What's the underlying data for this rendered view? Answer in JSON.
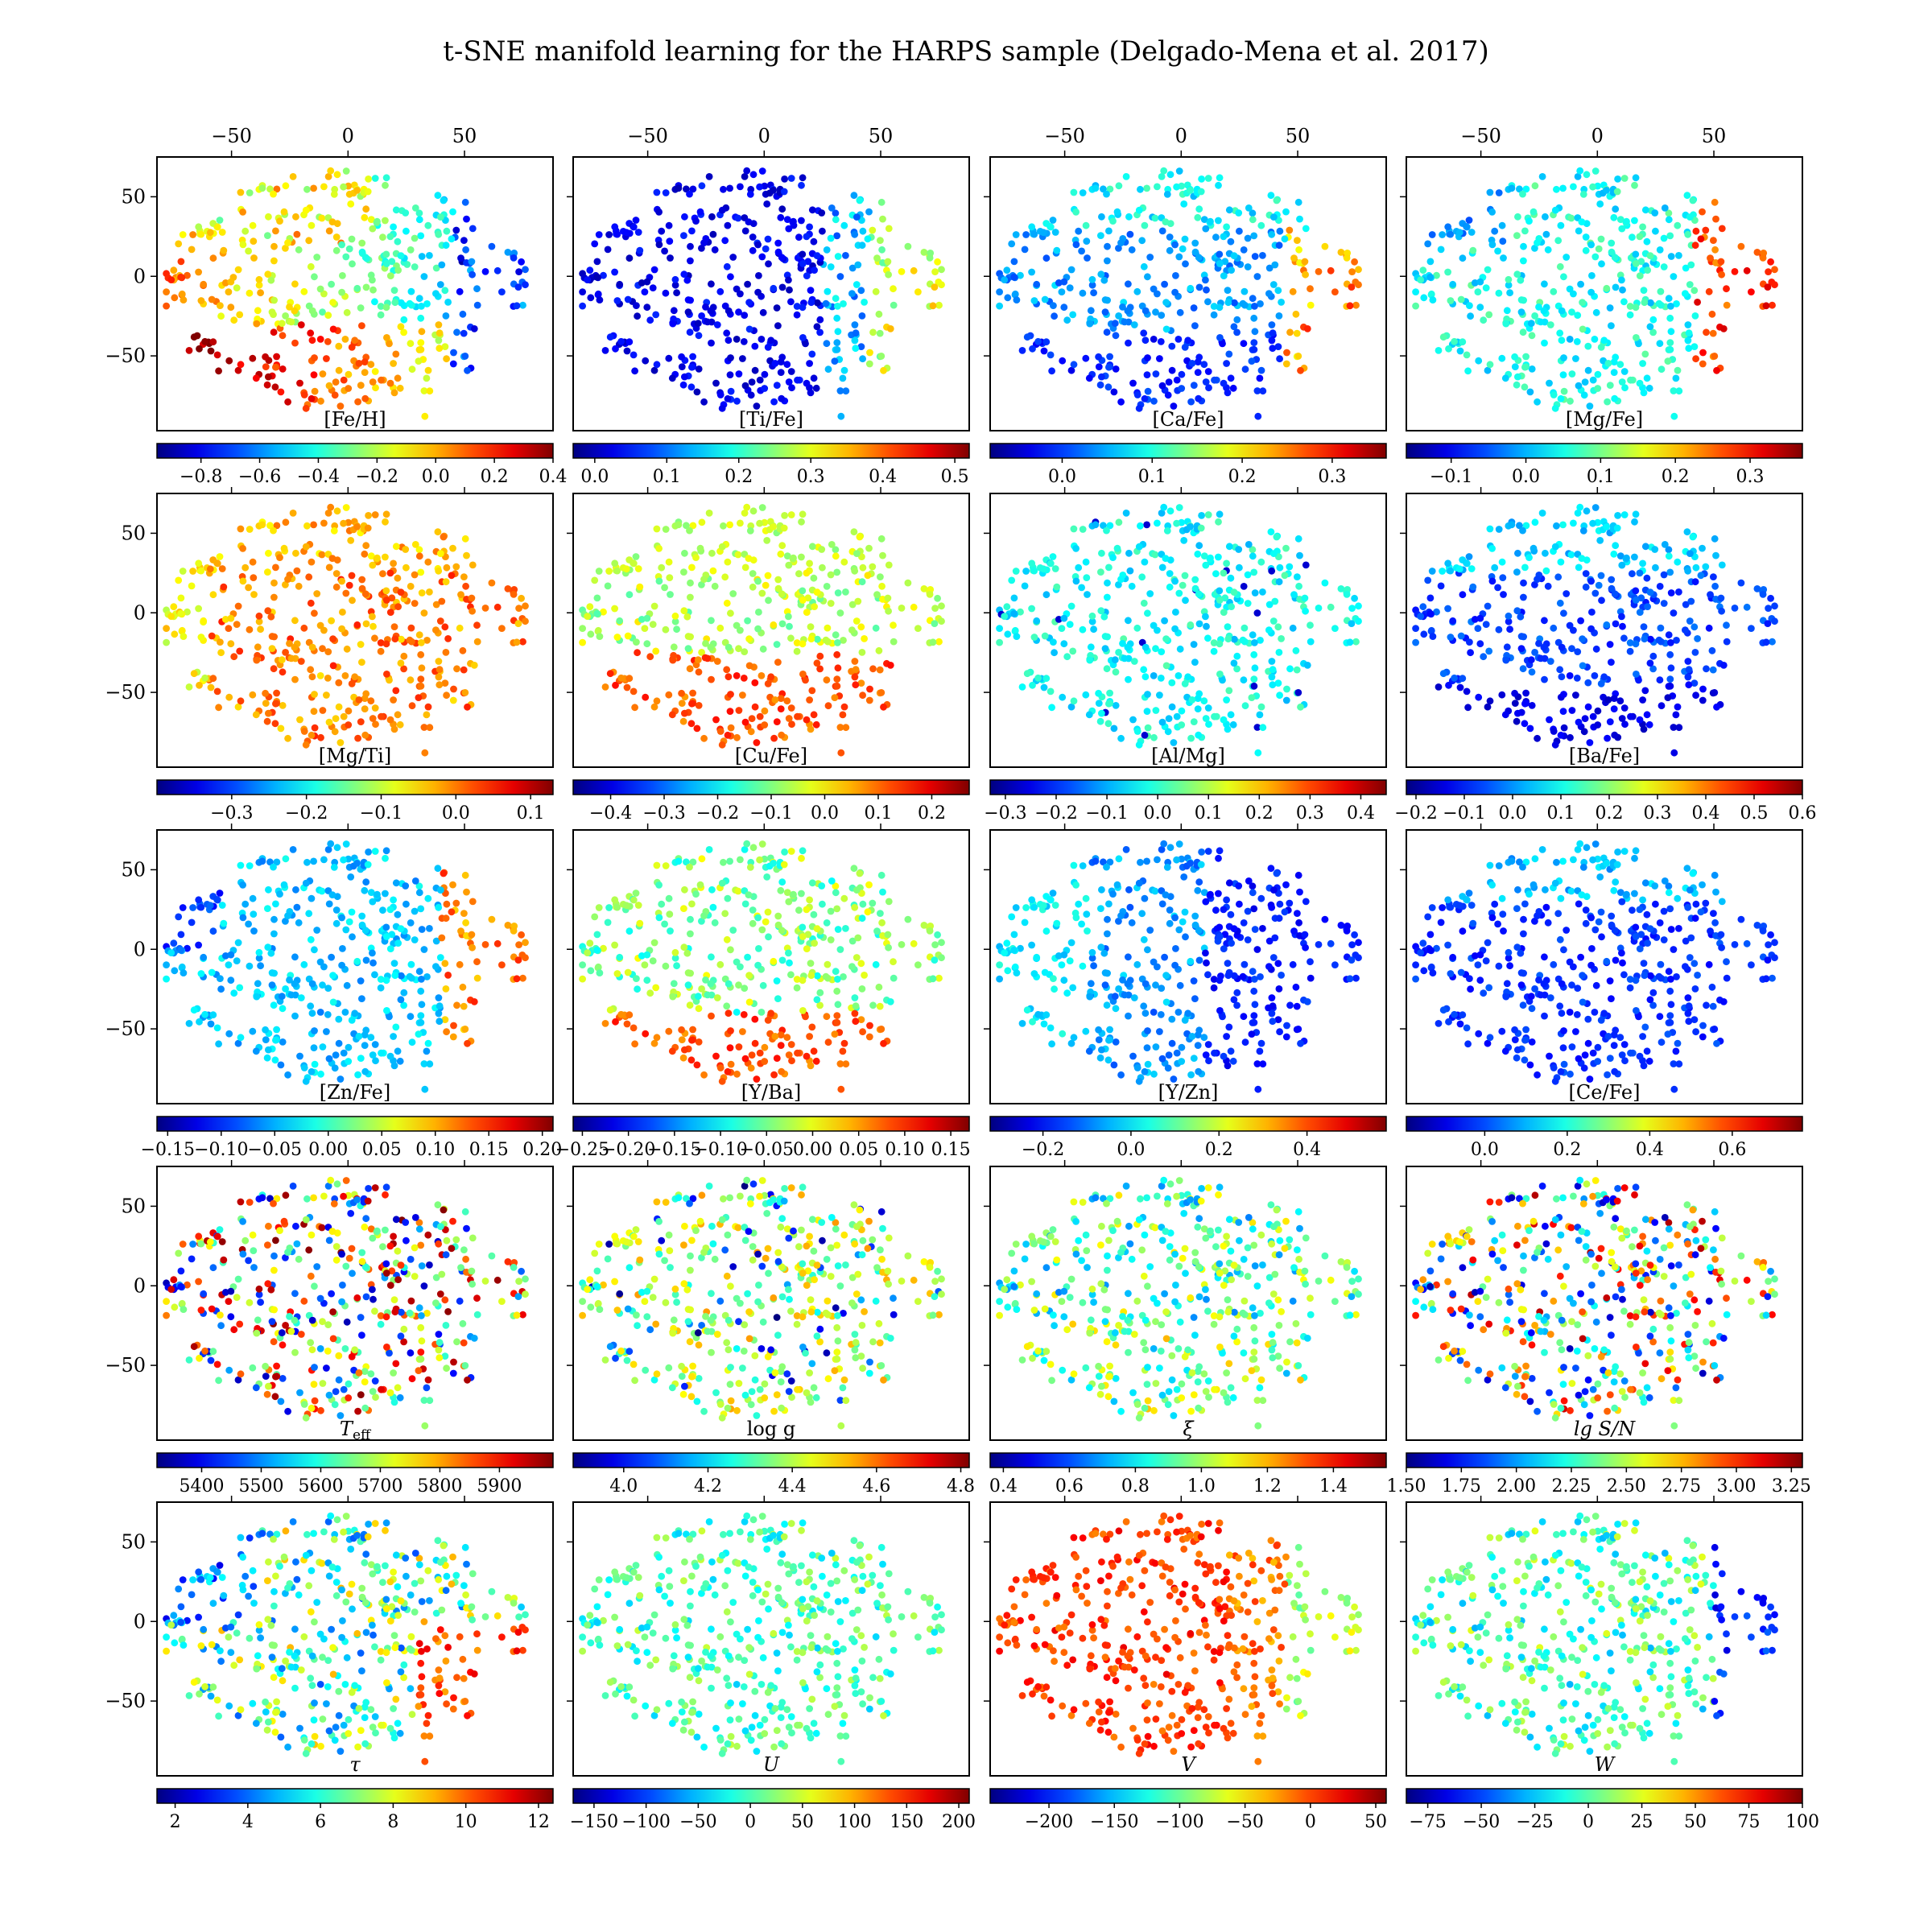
{
  "figure": {
    "title": "t-SNE manifold learning for the HARPS sample (Delgado-Mena et al. 2017)"
  },
  "chart_data": {
    "type": "scatter",
    "layout": {
      "rows": 5,
      "cols": 4
    },
    "x_axis": {
      "range": [
        -82,
        88
      ],
      "ticks": [
        -50,
        0,
        50
      ]
    },
    "y_axis": {
      "range": [
        -97,
        75
      ],
      "ticks": [
        50,
        0,
        -50
      ]
    },
    "colormap": "jet",
    "point_count": 450,
    "panels": [
      {
        "label": "[Fe/H]",
        "cbar_ticks": [
          "−0.8",
          "−0.6",
          "−0.4",
          "−0.2",
          "0.0",
          "0.2",
          "0.4"
        ],
        "cbar_range": [
          -0.95,
          0.4
        ],
        "pattern": "feh"
      },
      {
        "label": "[Ti/Fe]",
        "cbar_ticks": [
          "0.0",
          "0.1",
          "0.2",
          "0.3",
          "0.4",
          "0.5"
        ],
        "cbar_range": [
          -0.03,
          0.52
        ],
        "pattern": "tife"
      },
      {
        "label": "[Ca/Fe]",
        "cbar_ticks": [
          "0.0",
          "0.1",
          "0.2",
          "0.3"
        ],
        "cbar_range": [
          -0.08,
          0.36
        ],
        "pattern": "cafe"
      },
      {
        "label": "[Mg/Fe]",
        "cbar_ticks": [
          "−0.1",
          "0.0",
          "0.1",
          "0.2",
          "0.3"
        ],
        "cbar_range": [
          -0.16,
          0.37
        ],
        "pattern": "mgfe"
      },
      {
        "label": "[Mg/Ti]",
        "cbar_ticks": [
          "−0.3",
          "−0.2",
          "−0.1",
          "0.0",
          "0.1"
        ],
        "cbar_range": [
          -0.4,
          0.13
        ],
        "pattern": "mgti"
      },
      {
        "label": "[Cu/Fe]",
        "cbar_ticks": [
          "−0.4",
          "−0.3",
          "−0.2",
          "−0.1",
          "0.0",
          "0.1",
          "0.2"
        ],
        "cbar_range": [
          -0.47,
          0.27
        ],
        "pattern": "cufe"
      },
      {
        "label": "[Al/Mg]",
        "cbar_ticks": [
          "−0.3",
          "−0.2",
          "−0.1",
          "0.0",
          "0.1",
          "0.2",
          "0.3",
          "0.4"
        ],
        "cbar_range": [
          -0.33,
          0.45
        ],
        "pattern": "almg"
      },
      {
        "label": "[Ba/Fe]",
        "cbar_ticks": [
          "−0.2",
          "−0.1",
          "0.0",
          "0.1",
          "0.2",
          "0.3",
          "0.4",
          "0.5",
          "0.6"
        ],
        "cbar_range": [
          -0.22,
          0.6
        ],
        "pattern": "bafe"
      },
      {
        "label": "[Zn/Fe]",
        "cbar_ticks": [
          "−0.15",
          "−0.10",
          "−0.05",
          "0.00",
          "0.05",
          "0.10",
          "0.15",
          "0.20"
        ],
        "cbar_range": [
          -0.16,
          0.21
        ],
        "pattern": "znfe"
      },
      {
        "label": "[Y/Ba]",
        "cbar_ticks": [
          "−0.25",
          "−0.20",
          "−0.15",
          "−0.10",
          "−0.05",
          "0.00",
          "0.05",
          "0.10",
          "0.15"
        ],
        "cbar_range": [
          -0.26,
          0.17
        ],
        "pattern": "yba"
      },
      {
        "label": "[Y/Zn]",
        "cbar_ticks": [
          "−0.2",
          "0.0",
          "0.2",
          "0.4"
        ],
        "cbar_range": [
          -0.32,
          0.58
        ],
        "pattern": "yzn"
      },
      {
        "label": "[Ce/Fe]",
        "cbar_ticks": [
          "0.0",
          "0.2",
          "0.4",
          "0.6"
        ],
        "cbar_range": [
          -0.19,
          0.77
        ],
        "pattern": "cefe"
      },
      {
        "label": "T",
        "label_sub": "eff",
        "cbar_ticks": [
          "5400",
          "5500",
          "5600",
          "5700",
          "5800",
          "5900"
        ],
        "cbar_range": [
          5325,
          5990
        ],
        "pattern": "teff"
      },
      {
        "label": "log g",
        "cbar_ticks": [
          "4.0",
          "4.2",
          "4.4",
          "4.6",
          "4.8"
        ],
        "cbar_range": [
          3.88,
          4.82
        ],
        "pattern": "logg"
      },
      {
        "label": "ξ",
        "cbar_ticks": [
          "0.4",
          "0.6",
          "0.8",
          "1.0",
          "1.2",
          "1.4"
        ],
        "cbar_range": [
          0.36,
          1.56
        ],
        "pattern": "xi"
      },
      {
        "label": "lg S/N",
        "cbar_ticks": [
          "1.50",
          "1.75",
          "2.00",
          "2.25",
          "2.50",
          "2.75",
          "3.00",
          "3.25"
        ],
        "cbar_range": [
          1.5,
          3.3
        ],
        "pattern": "sn"
      },
      {
        "label": "τ",
        "cbar_ticks": [
          "2",
          "4",
          "6",
          "8",
          "10",
          "12"
        ],
        "cbar_range": [
          1.5,
          12.4
        ],
        "pattern": "tau"
      },
      {
        "label": "U",
        "cbar_ticks": [
          "−150",
          "−100",
          "−50",
          "0",
          "50",
          "100",
          "150",
          "200"
        ],
        "cbar_range": [
          -170,
          210
        ],
        "pattern": "U"
      },
      {
        "label": "V",
        "cbar_ticks": [
          "−200",
          "−150",
          "−100",
          "−50",
          "0",
          "50"
        ],
        "cbar_range": [
          -245,
          58
        ],
        "pattern": "V"
      },
      {
        "label": "W",
        "cbar_ticks": [
          "−75",
          "−50",
          "−25",
          "0",
          "25",
          "50",
          "75",
          "100"
        ],
        "cbar_range": [
          -85,
          100
        ],
        "pattern": "W"
      }
    ]
  }
}
